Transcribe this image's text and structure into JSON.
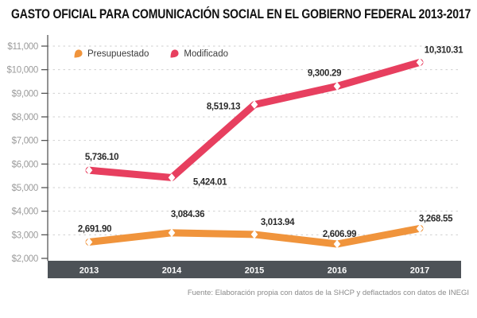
{
  "title": "GASTO OFICIAL PARA COMUNICACIÓN SOCIAL EN EL GOBIERNO FEDERAL 2013-2017",
  "footer": {
    "source": "Fuente: Elaboración propia con datos de la SHCP y deflactados con datos de INEGI"
  },
  "legend": {
    "items": [
      {
        "label": "Presupuestado",
        "color": "#f0943c"
      },
      {
        "label": "Modificado",
        "color": "#e73f5f"
      }
    ]
  },
  "chart_data": {
    "type": "line",
    "title": "GASTO OFICIAL PARA COMUNICACIÓN SOCIAL EN EL GOBIERNO FEDERAL 2013-2017",
    "categories": [
      "2013",
      "2014",
      "2015",
      "2016",
      "2017"
    ],
    "ylim": [
      2000,
      11000
    ],
    "y_tick_step": 1000,
    "y_tick_labels": [
      "$2,000",
      "$3,000",
      "$4,000",
      "$5,000",
      "$6,000",
      "$7,000",
      "$8,000",
      "$9,000",
      "$10,000",
      "$11,000"
    ],
    "grid": "horizontal-dashed",
    "legend_position": "top-left",
    "x_axis_band_color": "#4d5257",
    "x_axis_label_color": "#ffffff",
    "gridline_color": "#cfcfcf",
    "axis_color": "#4a4a4a",
    "y_label_color": "#9b9b9b",
    "value_label_color": "#2b2b2b",
    "marker": "white-diamond",
    "series": [
      {
        "id": "presupuestado",
        "name": "Presupuestado",
        "color": "#f0943c",
        "values": [
          2691.9,
          3084.36,
          3013.94,
          2606.99,
          3268.55
        ],
        "labels": [
          "2,691.90",
          "3,084.36",
          "3,013.94",
          "2,606.99",
          "3,268.55"
        ],
        "label_dx": [
          7,
          20,
          29,
          3,
          20
        ],
        "label_dy": [
          -13,
          -20,
          -12,
          -9,
          -9
        ]
      },
      {
        "id": "modificado",
        "name": "Modificado",
        "color": "#e73f5f",
        "values": [
          5736.1,
          5424.01,
          8519.13,
          9300.29,
          10310.31
        ],
        "labels": [
          "5,736.10",
          "5,424.01",
          "8,519.13",
          "9,300.29",
          "10,310.31"
        ],
        "label_dx": [
          16,
          48,
          -39,
          -16,
          30
        ],
        "label_dy": [
          -13,
          9,
          6,
          -13,
          -12
        ]
      }
    ]
  }
}
